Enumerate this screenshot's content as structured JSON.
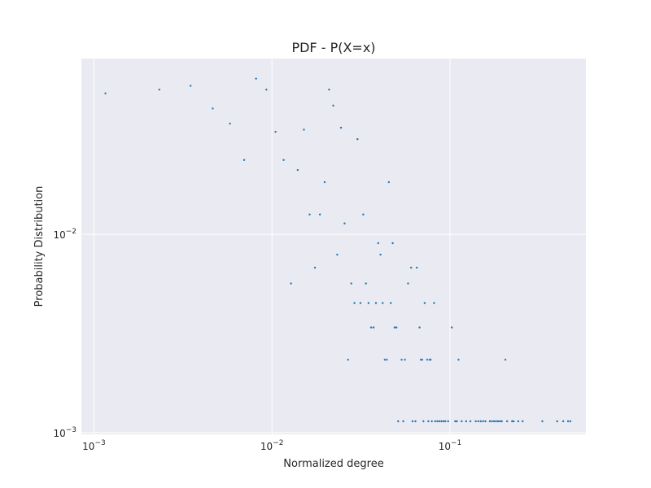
{
  "chart_data": {
    "type": "scatter",
    "title": "PDF - P(X=x)",
    "xlabel": "Normalized degree",
    "ylabel": "Probability Distribution",
    "xscale": "log",
    "yscale": "log",
    "xlim": [
      0.00085,
      0.58
    ],
    "ylim": [
      0.00098,
      0.077
    ],
    "grid": true,
    "x_ticks": [
      {
        "value": 0.001,
        "base": "10",
        "exp": "−3"
      },
      {
        "value": 0.01,
        "base": "10",
        "exp": "−2"
      },
      {
        "value": 0.1,
        "base": "10",
        "exp": "−1"
      }
    ],
    "y_ticks": [
      {
        "value": 0.001,
        "base": "10",
        "exp": "−3"
      },
      {
        "value": 0.01,
        "base": "10",
        "exp": "−2"
      }
    ],
    "colors": {
      "background": "#eaeaf2",
      "grid": "#ffffff",
      "marker": "#1f77b4"
    },
    "points": [
      [
        0.00116,
        0.0514
      ],
      [
        0.00233,
        0.0537
      ],
      [
        0.00349,
        0.0561
      ],
      [
        0.00465,
        0.0431
      ],
      [
        0.00581,
        0.0362
      ],
      [
        0.00698,
        0.0237
      ],
      [
        0.00814,
        0.061
      ],
      [
        0.0093,
        0.0537
      ],
      [
        0.01047,
        0.0329
      ],
      [
        0.01163,
        0.0237
      ],
      [
        0.01279,
        0.00565
      ],
      [
        0.01395,
        0.0211
      ],
      [
        0.01512,
        0.0337
      ],
      [
        0.01628,
        0.01259
      ],
      [
        0.01744,
        0.00679
      ],
      [
        0.0186,
        0.01259
      ],
      [
        0.01977,
        0.01833
      ],
      [
        0.02093,
        0.0537
      ],
      [
        0.02209,
        0.0446
      ],
      [
        0.02326,
        0.0079
      ],
      [
        0.02442,
        0.0345
      ],
      [
        0.02558,
        0.01135
      ],
      [
        0.02674,
        0.00233
      ],
      [
        0.02791,
        0.00565
      ],
      [
        0.02907,
        0.0045
      ],
      [
        0.03023,
        0.0302
      ],
      [
        0.0314,
        0.0045
      ],
      [
        0.03256,
        0.01259
      ],
      [
        0.03372,
        0.00565
      ],
      [
        0.03488,
        0.0045
      ],
      [
        0.03605,
        0.00339
      ],
      [
        0.03721,
        0.00339
      ],
      [
        0.03837,
        0.0045
      ],
      [
        0.03953,
        0.00902
      ],
      [
        0.0407,
        0.0079
      ],
      [
        0.04186,
        0.0045
      ],
      [
        0.04302,
        0.00233
      ],
      [
        0.04419,
        0.00233
      ],
      [
        0.04535,
        0.01833
      ],
      [
        0.04651,
        0.0045
      ],
      [
        0.04767,
        0.00902
      ],
      [
        0.04884,
        0.00339
      ],
      [
        0.05,
        0.00339
      ],
      [
        0.05116,
        0.00114
      ],
      [
        0.05349,
        0.00233
      ],
      [
        0.05465,
        0.00114
      ],
      [
        0.05581,
        0.00233
      ],
      [
        0.05814,
        0.00565
      ],
      [
        0.06047,
        0.00679
      ],
      [
        0.06163,
        0.00114
      ],
      [
        0.06395,
        0.00114
      ],
      [
        0.06512,
        0.00679
      ],
      [
        0.06744,
        0.00339
      ],
      [
        0.0686,
        0.00233
      ],
      [
        0.06977,
        0.00233
      ],
      [
        0.07093,
        0.00114
      ],
      [
        0.07209,
        0.0045
      ],
      [
        0.07442,
        0.00233
      ],
      [
        0.07558,
        0.00114
      ],
      [
        0.07674,
        0.00233
      ],
      [
        0.07791,
        0.00233
      ],
      [
        0.07907,
        0.00114
      ],
      [
        0.0814,
        0.0045
      ],
      [
        0.08256,
        0.00114
      ],
      [
        0.08488,
        0.00114
      ],
      [
        0.08721,
        0.00114
      ],
      [
        0.08953,
        0.00114
      ],
      [
        0.09186,
        0.00114
      ],
      [
        0.09419,
        0.00114
      ],
      [
        0.09767,
        0.00114
      ],
      [
        0.10233,
        0.00339
      ],
      [
        0.10698,
        0.00114
      ],
      [
        0.1093,
        0.00114
      ],
      [
        0.11163,
        0.00233
      ],
      [
        0.11628,
        0.00114
      ],
      [
        0.12326,
        0.00114
      ],
      [
        0.13023,
        0.00114
      ],
      [
        0.13953,
        0.00114
      ],
      [
        0.14419,
        0.00114
      ],
      [
        0.14884,
        0.00114
      ],
      [
        0.15349,
        0.00114
      ],
      [
        0.15814,
        0.00114
      ],
      [
        0.16744,
        0.00114
      ],
      [
        0.17209,
        0.00114
      ],
      [
        0.17674,
        0.00114
      ],
      [
        0.1814,
        0.00114
      ],
      [
        0.18605,
        0.00114
      ],
      [
        0.1907,
        0.00114
      ],
      [
        0.19535,
        0.00114
      ],
      [
        0.20465,
        0.00233
      ],
      [
        0.2093,
        0.00114
      ],
      [
        0.22326,
        0.00114
      ],
      [
        0.22791,
        0.00114
      ],
      [
        0.24186,
        0.00114
      ],
      [
        0.25581,
        0.00114
      ],
      [
        0.33023,
        0.00114
      ],
      [
        0.4,
        0.00114
      ],
      [
        0.43256,
        0.00114
      ],
      [
        0.46047,
        0.00114
      ],
      [
        0.47442,
        0.00114
      ]
    ]
  }
}
